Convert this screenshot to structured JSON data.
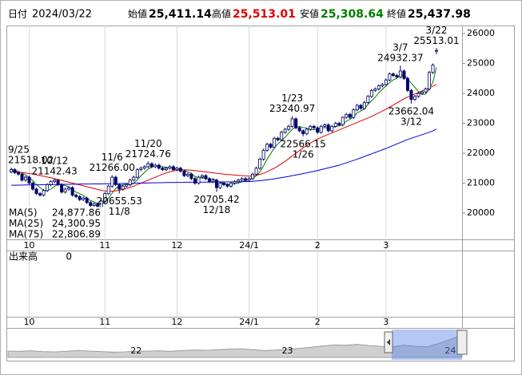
{
  "header": {
    "date_label": "日付",
    "date": "2024/03/22",
    "open_label": "始値",
    "open": "25,411.14",
    "high_label": "高値",
    "high": "25,513.01",
    "low_label": "安値",
    "low": "25,308.64",
    "close_label": "終値",
    "close": "25,437.98"
  },
  "chart_data": {
    "type": "candlestick",
    "categories": [
      null,
      null,
      null,
      null,
      null,
      "10",
      null,
      null,
      null,
      null,
      null,
      null,
      null,
      null,
      null,
      null,
      null,
      null,
      null,
      null,
      null,
      null,
      null,
      null,
      null,
      null,
      "11",
      null,
      null,
      null,
      null,
      null,
      null,
      null,
      null,
      null,
      null,
      null,
      null,
      null,
      null,
      null,
      null,
      null,
      null,
      null,
      "12",
      null,
      null,
      null,
      null,
      null,
      null,
      null,
      null,
      null,
      null,
      null,
      null,
      null,
      null,
      null,
      null,
      null,
      null,
      null,
      "24/1",
      null,
      null,
      null,
      null,
      null,
      null,
      null,
      null,
      null,
      null,
      null,
      null,
      null,
      null,
      null,
      null,
      null,
      null,
      "2",
      null,
      null,
      null,
      null,
      null,
      null,
      null,
      null,
      null,
      null,
      null,
      null,
      null,
      null,
      null,
      null,
      null,
      null,
      "3",
      null,
      null,
      null,
      null,
      null,
      null,
      null,
      null,
      null,
      null,
      null,
      null,
      null,
      null
    ],
    "open": [
      21380,
      21450,
      21350,
      21300,
      21100,
      21200,
      21000,
      20800,
      20650,
      20600,
      20750,
      20950,
      21050,
      21100,
      20950,
      20700,
      20800,
      20850,
      20600,
      20550,
      20450,
      20500,
      20350,
      20250,
      20300,
      20200,
      20400,
      20650,
      20900,
      21200,
      20950,
      20800,
      20900,
      20950,
      21100,
      21200,
      21450,
      21500,
      21550,
      21650,
      21550,
      21600,
      21500,
      21450,
      21500,
      21550,
      21450,
      21500,
      21400,
      21250,
      21300,
      21150,
      21000,
      21200,
      21250,
      21150,
      21050,
      21100,
      20850,
      21000,
      20950,
      20900,
      21000,
      21050,
      21100,
      21150,
      21100,
      21150,
      21300,
      21500,
      21800,
      22100,
      22300,
      22200,
      22500,
      22450,
      22700,
      22800,
      22900,
      23150,
      22850,
      22750,
      22650,
      22800,
      22900,
      22850,
      22700,
      22900,
      22950,
      22750,
      22900,
      23000,
      22950,
      23200,
      23300,
      23200,
      23450,
      23600,
      23500,
      23700,
      23900,
      24100,
      24150,
      24250,
      24300,
      24450,
      24650,
      24600,
      24550,
      24750,
      24500,
      24100,
      23800,
      23900,
      24000,
      24050,
      24150,
      24700,
      25411.14
    ],
    "high": [
      21518.02,
      21500,
      21400,
      21350,
      21250,
      21250,
      21050,
      20850,
      20700,
      20800,
      21000,
      21100,
      21142.43,
      21120,
      21000,
      20850,
      20900,
      20900,
      20650,
      20600,
      20550,
      20550,
      20400,
      20350,
      20350,
      20450,
      20700,
      20950,
      21266,
      21250,
      21000,
      20950,
      21000,
      21150,
      21250,
      21500,
      21550,
      21600,
      21724.76,
      21700,
      21650,
      21650,
      21550,
      21550,
      21600,
      21600,
      21550,
      21550,
      21450,
      21350,
      21350,
      21200,
      21250,
      21300,
      21300,
      21200,
      21150,
      21150,
      21050,
      21050,
      21000,
      21050,
      21100,
      21150,
      21200,
      21200,
      21200,
      21350,
      21550,
      21850,
      22150,
      22350,
      22350,
      22550,
      22550,
      22750,
      22850,
      22950,
      23240.97,
      23200,
      22900,
      22800,
      22850,
      22950,
      22950,
      22900,
      22950,
      23000,
      23000,
      22950,
      23050,
      23050,
      23230,
      23350,
      23350,
      23500,
      23650,
      23650,
      23750,
      23950,
      24150,
      24200,
      24300,
      24350,
      24500,
      24700,
      24700,
      24650,
      24932.37,
      24800,
      24550,
      24150,
      23950,
      24050,
      24100,
      24200,
      24750,
      25000,
      25513.01
    ],
    "low": [
      21330,
      21300,
      21250,
      21050,
      21050,
      20950,
      20750,
      20600,
      20550,
      20550,
      20700,
      20900,
      21000,
      20900,
      20650,
      20650,
      20750,
      20550,
      20500,
      20400,
      20400,
      20300,
      20200,
      20200,
      20150,
      20150,
      20350,
      20600,
      20850,
      20900,
      20655.53,
      20750,
      20850,
      20900,
      21050,
      21150,
      21400,
      21450,
      21500,
      21500,
      21500,
      21450,
      21400,
      21400,
      21450,
      21400,
      21400,
      21350,
      21200,
      21200,
      21100,
      20950,
      20950,
      21150,
      21100,
      21000,
      21000,
      20705.42,
      20800,
      20900,
      20850,
      20850,
      20950,
      21000,
      21050,
      21050,
      21050,
      21100,
      21250,
      21450,
      21750,
      22050,
      22150,
      22150,
      22400,
      22400,
      22650,
      22750,
      22850,
      22800,
      22700,
      22566.15,
      22600,
      22750,
      22800,
      22650,
      22650,
      22850,
      22700,
      22700,
      22850,
      22900,
      22900,
      23150,
      23150,
      23150,
      23400,
      23450,
      23450,
      23650,
      23850,
      24050,
      24100,
      24200,
      24250,
      24400,
      24550,
      24500,
      24500,
      24450,
      24050,
      23662.04,
      23750,
      23850,
      23950,
      24000,
      24100,
      24650,
      25308.64
    ],
    "close": [
      21450,
      21350,
      21300,
      21100,
      21200,
      21000,
      20800,
      20650,
      20600,
      20750,
      20950,
      21050,
      21100,
      20950,
      20700,
      20800,
      20850,
      20600,
      20550,
      20450,
      20500,
      20350,
      20250,
      20300,
      20200,
      20400,
      20650,
      20900,
      21200,
      20950,
      20800,
      20900,
      20950,
      21100,
      21200,
      21450,
      21500,
      21550,
      21650,
      21550,
      21600,
      21500,
      21450,
      21500,
      21550,
      21450,
      21500,
      21400,
      21250,
      21300,
      21150,
      21000,
      21200,
      21250,
      21150,
      21050,
      21100,
      20850,
      21000,
      20950,
      20900,
      21000,
      21050,
      21100,
      21150,
      21100,
      21150,
      21300,
      21500,
      21800,
      22100,
      22300,
      22200,
      22500,
      22450,
      22700,
      22800,
      22900,
      23150,
      22850,
      22750,
      22650,
      22800,
      22900,
      22850,
      22700,
      22900,
      22950,
      22750,
      22900,
      23000,
      22950,
      23200,
      23300,
      23200,
      23450,
      23600,
      23500,
      23700,
      23900,
      24100,
      24150,
      24250,
      24300,
      24450,
      24650,
      24600,
      24550,
      24750,
      24500,
      24100,
      23800,
      23900,
      24000,
      24050,
      24150,
      24700,
      24950,
      25437.98
    ],
    "up_color": "#ffffff",
    "down_color": "#000080",
    "series": [
      {
        "name": "MA(5)",
        "color": "#008000",
        "legend_value": "24,877.86",
        "values": [
          21480,
          21430,
          21390,
          21330,
          21280,
          21190,
          21080,
          20950,
          20850,
          20760,
          20750,
          20800,
          20890,
          20960,
          20950,
          20920,
          20880,
          20780,
          20700,
          20650,
          20590,
          20490,
          20420,
          20370,
          20320,
          20300,
          20360,
          20490,
          20670,
          20820,
          20900,
          20950,
          20960,
          20940,
          20990,
          21120,
          21240,
          21360,
          21470,
          21540,
          21570,
          21570,
          21550,
          21520,
          21520,
          21490,
          21490,
          21480,
          21430,
          21380,
          21320,
          21220,
          21180,
          21180,
          21150,
          21130,
          21150,
          21080,
          21030,
          20990,
          20960,
          20940,
          20980,
          21000,
          21040,
          21080,
          21110,
          21160,
          21240,
          21370,
          21570,
          21800,
          21980,
          22180,
          22310,
          22430,
          22530,
          22670,
          22800,
          22880,
          22890,
          22860,
          22840,
          22790,
          22790,
          22780,
          22830,
          22860,
          22830,
          22840,
          22900,
          22910,
          22960,
          23070,
          23130,
          23220,
          23350,
          23410,
          23490,
          23630,
          23760,
          23870,
          24020,
          24140,
          24250,
          24360,
          24450,
          24510,
          24600,
          24610,
          24500,
          24340,
          24210,
          24060,
          23970,
          23980,
          24160,
          24370,
          24877.86
        ]
      },
      {
        "name": "MA(25)",
        "color": "#e00000",
        "legend_value": "24,300.95",
        "values": [
          21390,
          21380,
          21370,
          21355,
          21340,
          21320,
          21300,
          21280,
          21255,
          21230,
          21205,
          21180,
          21150,
          21120,
          21090,
          21060,
          21030,
          21000,
          20970,
          20940,
          20910,
          20880,
          20850,
          20820,
          20790,
          20760,
          20740,
          20730,
          20730,
          20740,
          20760,
          20790,
          20820,
          20860,
          20900,
          20950,
          21000,
          21050,
          21100,
          21150,
          21200,
          21250,
          21300,
          21340,
          21380,
          21410,
          21430,
          21440,
          21445,
          21440,
          21430,
          21420,
          21405,
          21390,
          21375,
          21360,
          21345,
          21330,
          21315,
          21300,
          21290,
          21280,
          21270,
          21260,
          21250,
          21240,
          21235,
          21240,
          21260,
          21290,
          21330,
          21380,
          21440,
          21500,
          21570,
          21650,
          21730,
          21820,
          21910,
          22000,
          22090,
          22180,
          22260,
          22340,
          22410,
          22470,
          22530,
          22580,
          22630,
          22680,
          22730,
          22780,
          22830,
          22880,
          22930,
          22980,
          23030,
          23080,
          23130,
          23180,
          23230,
          23290,
          23350,
          23410,
          23470,
          23540,
          23610,
          23680,
          23750,
          23820,
          23880,
          23930,
          23980,
          24030,
          24080,
          24130,
          24180,
          24240,
          24300.95
        ]
      },
      {
        "name": "MA(75)",
        "color": "#0000e0",
        "legend_value": "22,806.89",
        "values": [
          20930,
          20930,
          20935,
          20935,
          20940,
          20940,
          20940,
          20945,
          20945,
          20950,
          20950,
          20950,
          20955,
          20955,
          20960,
          20960,
          20960,
          20965,
          20965,
          20970,
          20970,
          20970,
          20970,
          20975,
          20975,
          20975,
          20980,
          20980,
          20980,
          20985,
          20985,
          20990,
          20990,
          20990,
          20995,
          21000,
          21000,
          21005,
          21005,
          21010,
          21010,
          21015,
          21015,
          21020,
          21020,
          21020,
          21025,
          21025,
          21025,
          21030,
          21030,
          21030,
          21030,
          21035,
          21035,
          21035,
          21035,
          21040,
          21040,
          21040,
          21040,
          21045,
          21045,
          21045,
          21050,
          21050,
          21055,
          21060,
          21070,
          21080,
          21095,
          21110,
          21125,
          21145,
          21165,
          21185,
          21205,
          21225,
          21250,
          21270,
          21295,
          21320,
          21345,
          21370,
          21395,
          21420,
          21450,
          21480,
          21510,
          21540,
          21570,
          21600,
          21640,
          21680,
          21720,
          21760,
          21800,
          21845,
          21890,
          21935,
          21980,
          22025,
          22070,
          22115,
          22160,
          22210,
          22260,
          22310,
          22360,
          22410,
          22460,
          22500,
          22540,
          22580,
          22620,
          22660,
          22700,
          22750,
          22806.89
        ]
      }
    ],
    "ylim": [
      19120,
      26270
    ],
    "yticks": [
      20000,
      21000,
      22000,
      23000,
      24000,
      25000,
      26000
    ],
    "annotations": [
      {
        "date": "9/25",
        "label": "21518.02"
      },
      {
        "date": "10/12",
        "label": "21142.43"
      },
      {
        "date": "11/6",
        "label": "21266.00"
      },
      {
        "date": "11/8",
        "label": "20655.53"
      },
      {
        "date": "11/20",
        "label": "21724.76"
      },
      {
        "date": "12/18",
        "label": "20705.42"
      },
      {
        "date": "1/23",
        "label": "23240.97"
      },
      {
        "date": "1/26",
        "label": "22566.15"
      },
      {
        "date": "3/7",
        "label": "24932.37"
      },
      {
        "date": "3/12",
        "label": "23662.04"
      },
      {
        "date": "3/22",
        "label": "25513.01"
      }
    ],
    "volume": {
      "label": "出来高",
      "value": 0
    },
    "navigator": {
      "values": [
        19400,
        19300,
        19500,
        19200,
        19100,
        19300,
        19600,
        19400,
        19200,
        19000,
        19100,
        19300,
        19400,
        19500,
        19300,
        19600,
        19800,
        19700,
        19900,
        20100,
        20300,
        19900,
        19600,
        19800,
        20100,
        20400,
        20800,
        21300,
        21700,
        21600,
        21900,
        21500,
        21200,
        21000,
        21600,
        21200,
        21000,
        22300,
        23800,
        25437.98
      ],
      "categories": [
        null,
        null,
        null,
        null,
        null,
        null,
        null,
        null,
        null,
        null,
        null,
        "22",
        null,
        null,
        null,
        null,
        null,
        null,
        null,
        null,
        null,
        null,
        null,
        null,
        "23",
        null,
        null,
        null,
        null,
        null,
        null,
        null,
        null,
        null,
        null,
        null,
        null,
        null,
        "24",
        null
      ],
      "ylim": [
        17000,
        26000
      ]
    }
  }
}
